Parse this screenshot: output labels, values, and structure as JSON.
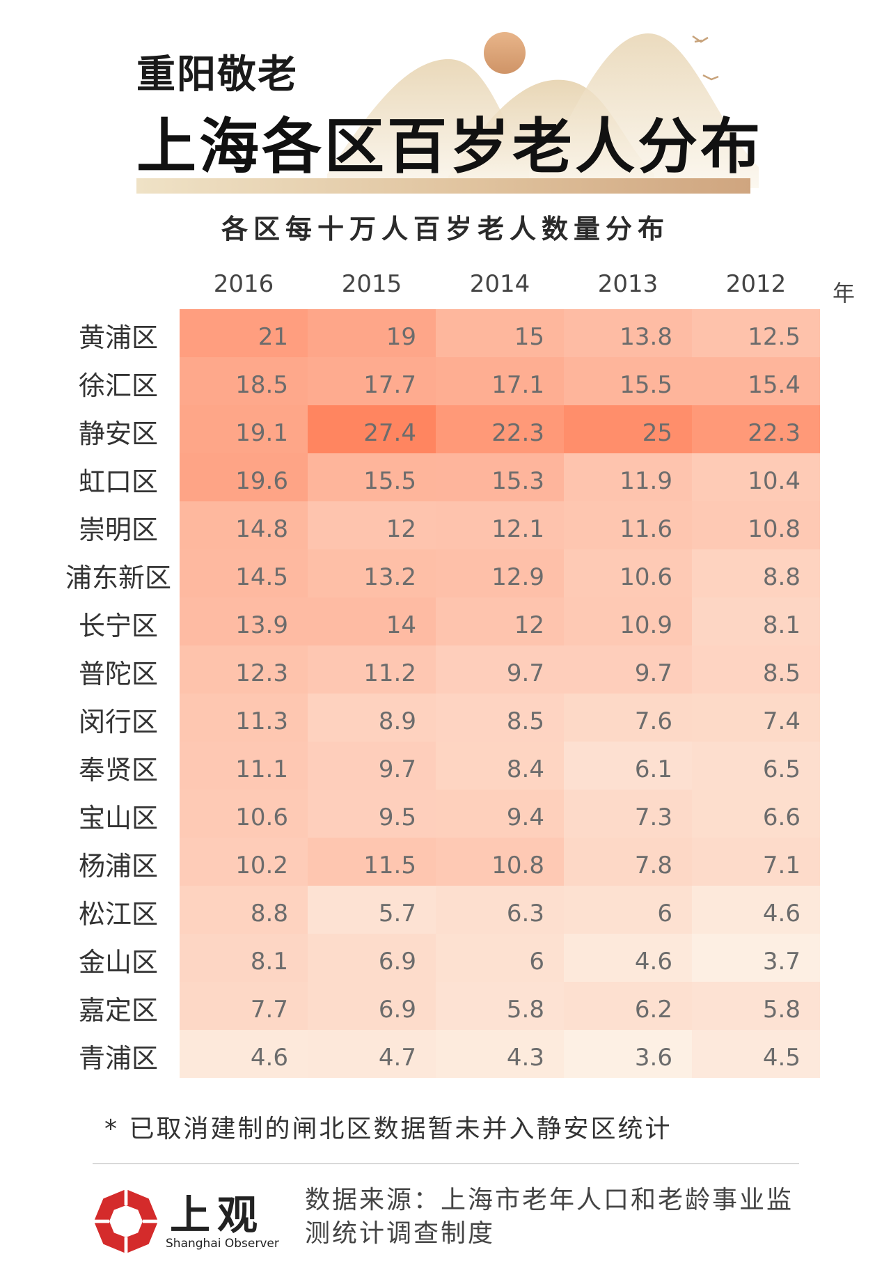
{
  "header": {
    "kicker": "重阳敬老",
    "title": "上海各区百岁老人分布",
    "subtitle": "各区每十万人百岁老人数量分布"
  },
  "chart_data": {
    "type": "heatmap",
    "title": "各区每十万人百岁老人数量分布",
    "columns": [
      "2016",
      "2015",
      "2014",
      "2013",
      "2012"
    ],
    "x_unit": "年",
    "rows": [
      "黄浦区",
      "徐汇区",
      "静安区",
      "虹口区",
      "崇明区",
      "浦东新区",
      "长宁区",
      "普陀区",
      "闵行区",
      "奉贤区",
      "宝山区",
      "杨浦区",
      "松江区",
      "金山区",
      "嘉定区",
      "青浦区"
    ],
    "values": [
      [
        21,
        19,
        15,
        13.8,
        12.5
      ],
      [
        18.5,
        17.7,
        17.1,
        15.5,
        15.4
      ],
      [
        19.1,
        27.4,
        22.3,
        25,
        22.3
      ],
      [
        19.6,
        15.5,
        15.3,
        11.9,
        10.4
      ],
      [
        14.8,
        12,
        12.1,
        11.6,
        10.8
      ],
      [
        14.5,
        13.2,
        12.9,
        10.6,
        8.8
      ],
      [
        13.9,
        14,
        12,
        10.9,
        8.1
      ],
      [
        12.3,
        11.2,
        9.7,
        9.7,
        8.5
      ],
      [
        11.3,
        8.9,
        8.5,
        7.6,
        7.4
      ],
      [
        11.1,
        9.7,
        8.4,
        6.1,
        6.5
      ],
      [
        10.6,
        9.5,
        9.4,
        7.3,
        6.6
      ],
      [
        10.2,
        11.5,
        10.8,
        7.8,
        7.1
      ],
      [
        8.8,
        5.7,
        6.3,
        6,
        4.6
      ],
      [
        8.1,
        6.9,
        6,
        4.6,
        3.7
      ],
      [
        7.7,
        6.9,
        5.8,
        6.2,
        5.8
      ],
      [
        4.6,
        4.7,
        4.3,
        3.6,
        4.5
      ]
    ],
    "color_low": "#fdf0e4",
    "color_high": "#ff8560"
  },
  "footer": {
    "note": "* 已取消建制的闸北区数据暂未并入静安区统计",
    "logo_cn": "上观",
    "logo_en": "Shanghai Observer",
    "source": "数据来源：上海市老年人口和老龄事业监测统计调查制度"
  },
  "colors": {
    "title_bar_start": "#efe2c6",
    "title_bar_end": "#cfa57f",
    "sun": "#d9a57c",
    "logo_red": "#d42b2b"
  }
}
